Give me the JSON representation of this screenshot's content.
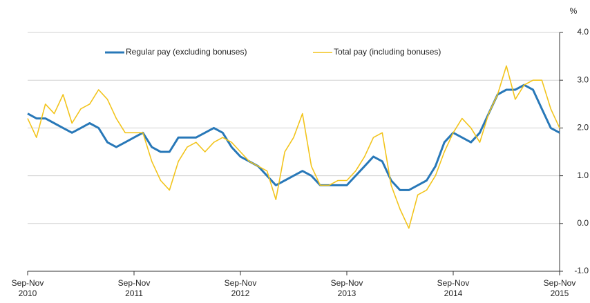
{
  "chart_data": {
    "type": "line",
    "y_unit": "%",
    "categories": [
      "Sep-Nov 2010",
      null,
      null,
      null,
      null,
      null,
      null,
      null,
      null,
      null,
      null,
      null,
      "Sep-Nov 2011",
      null,
      null,
      null,
      null,
      null,
      null,
      null,
      null,
      null,
      null,
      null,
      "Sep-Nov 2012",
      null,
      null,
      null,
      null,
      null,
      null,
      null,
      null,
      null,
      null,
      null,
      "Sep-Nov 2013",
      null,
      null,
      null,
      null,
      null,
      null,
      null,
      null,
      null,
      null,
      null,
      "Sep-Nov 2014",
      null,
      null,
      null,
      null,
      null,
      null,
      null,
      null,
      null,
      null,
      null,
      "Sep-Nov 2015"
    ],
    "series": [
      {
        "name": "Regular pay (excluding bonuses)",
        "color": "#2878b8",
        "values": [
          2.3,
          2.2,
          2.2,
          2.1,
          2.0,
          1.9,
          2.0,
          2.1,
          2.0,
          1.7,
          1.6,
          1.7,
          1.8,
          1.9,
          1.6,
          1.5,
          1.5,
          1.8,
          1.8,
          1.8,
          1.9,
          2.0,
          1.9,
          1.6,
          1.4,
          1.3,
          1.2,
          1.0,
          0.8,
          0.9,
          1.0,
          1.1,
          1.0,
          0.8,
          0.8,
          0.8,
          0.8,
          1.0,
          1.2,
          1.4,
          1.3,
          0.9,
          0.7,
          0.7,
          0.8,
          0.9,
          1.2,
          1.7,
          1.9,
          1.8,
          1.7,
          1.9,
          2.3,
          2.7,
          2.8,
          2.8,
          2.9,
          2.8,
          2.4,
          2.0,
          1.9
        ]
      },
      {
        "name": "Total pay (including bonuses)",
        "color": "#f2c41c",
        "values": [
          2.2,
          1.8,
          2.5,
          2.3,
          2.7,
          2.1,
          2.4,
          2.5,
          2.8,
          2.6,
          2.2,
          1.9,
          1.9,
          1.9,
          1.3,
          0.9,
          0.7,
          1.3,
          1.6,
          1.7,
          1.5,
          1.7,
          1.8,
          1.7,
          1.5,
          1.3,
          1.2,
          1.1,
          0.5,
          1.5,
          1.8,
          2.3,
          1.2,
          0.8,
          0.8,
          0.9,
          0.9,
          1.1,
          1.4,
          1.8,
          1.9,
          0.8,
          0.3,
          -0.1,
          0.6,
          0.7,
          1.0,
          1.5,
          1.9,
          2.2,
          2.0,
          1.7,
          2.3,
          2.7,
          3.3,
          2.6,
          2.9,
          3.0,
          3.0,
          2.4,
          2.0
        ]
      }
    ],
    "ylim": [
      -1,
      4
    ],
    "yticks": [
      {
        "value": -1,
        "label": "-1.0"
      },
      {
        "value": 0,
        "label": "0.0"
      },
      {
        "value": 1,
        "label": "1.0"
      },
      {
        "value": 2,
        "label": "2.0"
      },
      {
        "value": 3,
        "label": "3.0"
      },
      {
        "value": 4,
        "label": "4.0"
      }
    ],
    "grid": true,
    "legend": "top"
  }
}
